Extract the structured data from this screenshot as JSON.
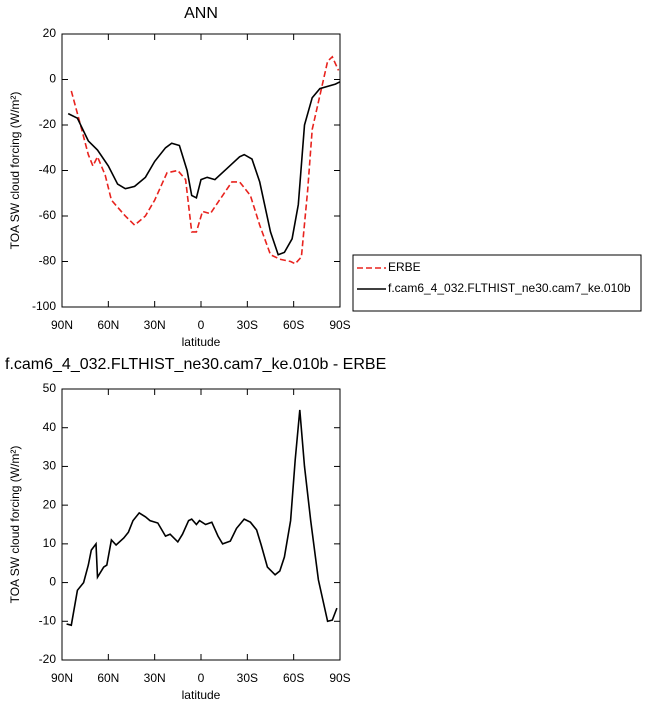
{
  "chart_data": [
    {
      "type": "line",
      "title": "ANN",
      "xlabel": "latitude",
      "ylabel": "TOA SW cloud forcing (W/m²)",
      "xlim": [
        90,
        -90
      ],
      "xticks": [
        {
          "value": 90,
          "label": "90N"
        },
        {
          "value": 60,
          "label": "60N"
        },
        {
          "value": 30,
          "label": "30N"
        },
        0,
        {
          "value": -30,
          "label": "30S"
        },
        {
          "value": -60,
          "label": "60S"
        },
        {
          "value": -90,
          "label": "90S"
        }
      ],
      "ylim": [
        -100,
        20
      ],
      "yticks": [
        20,
        0,
        -20,
        -40,
        -60,
        -80,
        -100
      ],
      "legend": "right",
      "series": [
        {
          "name": "ERBE",
          "color": "#e8231e",
          "line_style": "dashed",
          "x": [
            84,
            78,
            73,
            70,
            67,
            62,
            58,
            49,
            43,
            36,
            30,
            22,
            15,
            10,
            6,
            3,
            -1,
            -6,
            -12,
            -20,
            -25,
            -32,
            -38,
            -45,
            -51,
            -58,
            -61,
            -65,
            -69,
            -72,
            -77,
            -82,
            -85,
            -89
          ],
          "values": [
            -5,
            -20,
            -33,
            -38,
            -34,
            -42,
            -53,
            -60,
            -64,
            -60,
            -53,
            -41,
            -40,
            -44,
            -67,
            -67,
            -58,
            -59,
            -53,
            -45,
            -45,
            -51,
            -64,
            -77,
            -79,
            -80,
            -81,
            -78,
            -49,
            -22,
            -7,
            8,
            10,
            4
          ]
        },
        {
          "name": "f.cam6_4_032.FLTHIST_ne30.cam7_ke.010b",
          "color": "#000000",
          "line_style": "solid",
          "x": [
            86,
            80,
            73,
            67,
            60,
            54,
            49,
            43,
            36,
            30,
            23,
            19,
            14,
            9,
            6,
            3,
            0,
            -4,
            -9,
            -17,
            -25,
            -28,
            -33,
            -38,
            -45,
            -50,
            -54,
            -59,
            -63,
            -67,
            -72,
            -77,
            -87,
            -90
          ],
          "values": [
            -15,
            -17,
            -27,
            -31,
            -38,
            -46,
            -48,
            -47,
            -43,
            -36,
            -30,
            -28,
            -29,
            -40,
            -51,
            -52,
            -44,
            -43,
            -44,
            -39,
            -34,
            -33,
            -35,
            -45,
            -67,
            -77,
            -76,
            -70,
            -55,
            -20,
            -8,
            -4,
            -2,
            -1
          ]
        }
      ]
    },
    {
      "type": "line",
      "title": "f.cam6_4_032.FLTHIST_ne30.cam7_ke.010b - ERBE",
      "xlabel": "latitude",
      "ylabel": "TOA SW cloud forcing (W/m²)",
      "xlim": [
        90,
        -90
      ],
      "xticks": [
        {
          "value": 90,
          "label": "90N"
        },
        {
          "value": 60,
          "label": "60N"
        },
        {
          "value": 30,
          "label": "30N"
        },
        0,
        {
          "value": -30,
          "label": "30S"
        },
        {
          "value": -60,
          "label": "60S"
        },
        {
          "value": -90,
          "label": "90S"
        }
      ],
      "ylim": [
        -20,
        50
      ],
      "yticks": [
        50,
        40,
        30,
        20,
        10,
        0,
        -10,
        -20
      ],
      "color": "#000000",
      "x": [
        87,
        84,
        80,
        76,
        73,
        71,
        68,
        67,
        63,
        61,
        58,
        55,
        50,
        47,
        44,
        40,
        36,
        33,
        28,
        23,
        20,
        15,
        12,
        8,
        6,
        3,
        1,
        -3,
        -7,
        -11,
        -14,
        -19,
        -23,
        -28,
        -32,
        -36,
        -39,
        -43,
        -48,
        -51,
        -54,
        -58,
        -61,
        -64,
        -67,
        -71,
        -76,
        -82,
        -85,
        -88
      ],
      "values": [
        -10.7,
        -11,
        -2,
        0,
        4.5,
        8.4,
        10,
        1.4,
        4,
        4.5,
        11,
        9.7,
        11.5,
        13,
        16,
        18,
        17,
        16,
        15.4,
        12,
        12.5,
        10.5,
        12.5,
        16,
        16.4,
        15,
        16,
        15,
        15.6,
        12,
        10,
        10.7,
        14,
        16.4,
        15.6,
        13.6,
        9.7,
        4,
        2,
        3,
        6.6,
        16,
        31.7,
        44.6,
        30,
        16,
        0.7,
        -10,
        -9.7,
        -6.6
      ]
    }
  ]
}
